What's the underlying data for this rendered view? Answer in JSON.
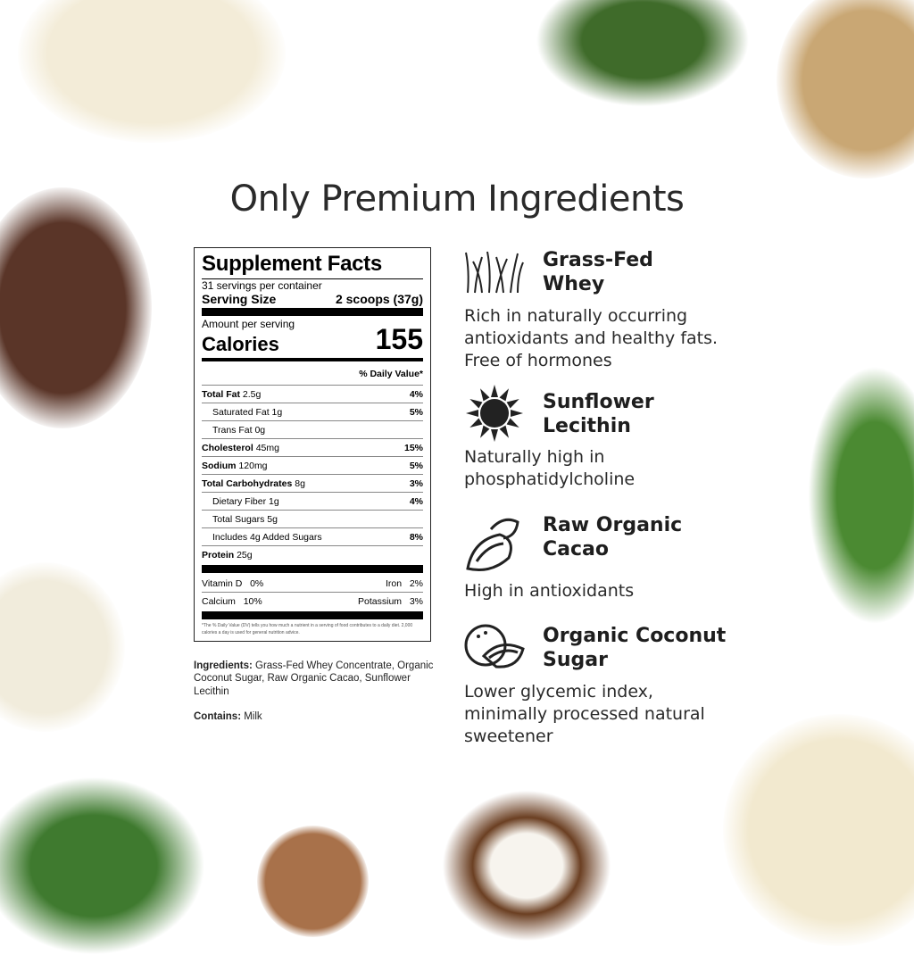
{
  "heading": "Only Premium Ingredients",
  "supplement_facts": {
    "title": "Supplement Facts",
    "servings": "31 servings per container",
    "serving_size_label": "Serving Size",
    "serving_size_value": "2 scoops (37g)",
    "amount_per_serving": "Amount per serving",
    "calories_label": "Calories",
    "calories_value": "155",
    "daily_value_header": "% Daily Value*",
    "rows": [
      {
        "label": "Total Fat",
        "amount": "2.5g",
        "dv": "4%",
        "bold": true,
        "indent": false
      },
      {
        "label": "Saturated Fat 1g",
        "amount": "",
        "dv": "5%",
        "bold": false,
        "indent": true
      },
      {
        "label": "Trans Fat 0g",
        "amount": "",
        "dv": "",
        "bold": false,
        "indent": true
      },
      {
        "label": "Cholesterol",
        "amount": "45mg",
        "dv": "15%",
        "bold": true,
        "indent": false
      },
      {
        "label": "Sodium",
        "amount": "120mg",
        "dv": "5%",
        "bold": true,
        "indent": false
      },
      {
        "label": "Total Carbohydrates",
        "amount": "8g",
        "dv": "3%",
        "bold": true,
        "indent": false
      },
      {
        "label": "Dietary Fiber 1g",
        "amount": "",
        "dv": "4%",
        "bold": false,
        "indent": true
      },
      {
        "label": "Total Sugars 5g",
        "amount": "",
        "dv": "",
        "bold": false,
        "indent": true
      },
      {
        "label": "Includes 4g Added Sugars",
        "amount": "",
        "dv": "8%",
        "bold": false,
        "indent": true
      },
      {
        "label": "Protein",
        "amount": "25g",
        "dv": "",
        "bold": true,
        "indent": false
      }
    ],
    "vitamins": [
      {
        "left": "Vitamin D",
        "left_val": "0%",
        "right": "Iron",
        "right_val": "2%"
      },
      {
        "left": "Calcium",
        "left_val": "10%",
        "right": "Potassium",
        "right_val": "3%"
      }
    ],
    "footnote": "*The % Daily Value (DV) tells you how much a nutrient in a serving of food contributes to a daily diet. 2,000 calories a day is used for general nutrition advice."
  },
  "ingredients": {
    "label": "Ingredients:",
    "text": " Grass-Fed Whey Concentrate, Organic Coconut Sugar, Raw Organic Cacao, Sunflower Lecithin"
  },
  "contains": {
    "label": "Contains:",
    "text": " Milk"
  },
  "features": [
    {
      "name": "Grass-Fed Whey",
      "desc": "Rich in naturally occurring antioxidants and healthy fats. Free of hormones",
      "icon": "grass-icon"
    },
    {
      "name": "Sunflower Lecithin",
      "desc": "Naturally high in phosphatidylcholine",
      "icon": "sunflower-icon"
    },
    {
      "name": "Raw Organic Cacao",
      "desc": "High in antioxidants",
      "icon": "cacao-pod-icon"
    },
    {
      "name": "Organic Coconut Sugar",
      "desc": "Lower glycemic index, minimally processed natural sweetener",
      "icon": "coconut-icon"
    }
  ]
}
